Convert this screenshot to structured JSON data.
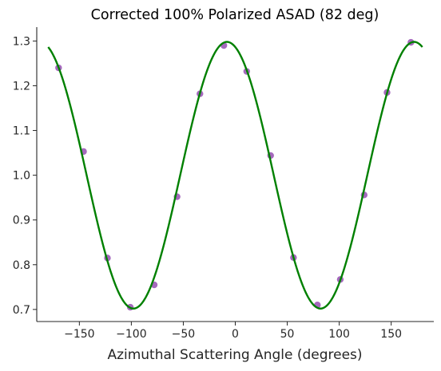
{
  "chart_data": {
    "type": "scatter",
    "title": "Corrected 100% Polarized ASAD (82 deg)",
    "xlabel": "Azimuthal Scattering Angle (degrees)",
    "ylabel": "",
    "xlim": [
      -191,
      191
    ],
    "ylim": [
      0.673,
      1.331
    ],
    "x_ticks": [
      -150,
      -100,
      -50,
      0,
      50,
      100,
      150
    ],
    "x_tick_labels": [
      "−150",
      "−100",
      "−50",
      "0",
      "50",
      "100",
      "150"
    ],
    "y_ticks": [
      0.7,
      0.8,
      0.9,
      1.0,
      1.1,
      1.2,
      1.3
    ],
    "y_tick_labels": [
      "0.7",
      "0.8",
      "0.9",
      "1.0",
      "1.1",
      "1.2",
      "1.3"
    ],
    "grid": false,
    "legend": "none",
    "series": [
      {
        "kind": "points",
        "color": "#9b59b6",
        "x": [
          -170,
          -146,
          -123,
          -101,
          -78,
          -56,
          -34,
          -11,
          11,
          34,
          56,
          79,
          101,
          124,
          146,
          169
        ],
        "y": [
          1.24,
          1.053,
          0.815,
          0.705,
          0.755,
          0.952,
          1.182,
          1.29,
          1.232,
          1.044,
          0.816,
          0.71,
          0.767,
          0.956,
          1.185,
          1.297
        ]
      },
      {
        "kind": "fit-curve",
        "color": "#008000",
        "model": "A + B*cos(2*(x - phi))",
        "A": 1.0,
        "B": 0.298,
        "phi_deg": -8,
        "x_range": [
          -180,
          180
        ]
      }
    ]
  }
}
